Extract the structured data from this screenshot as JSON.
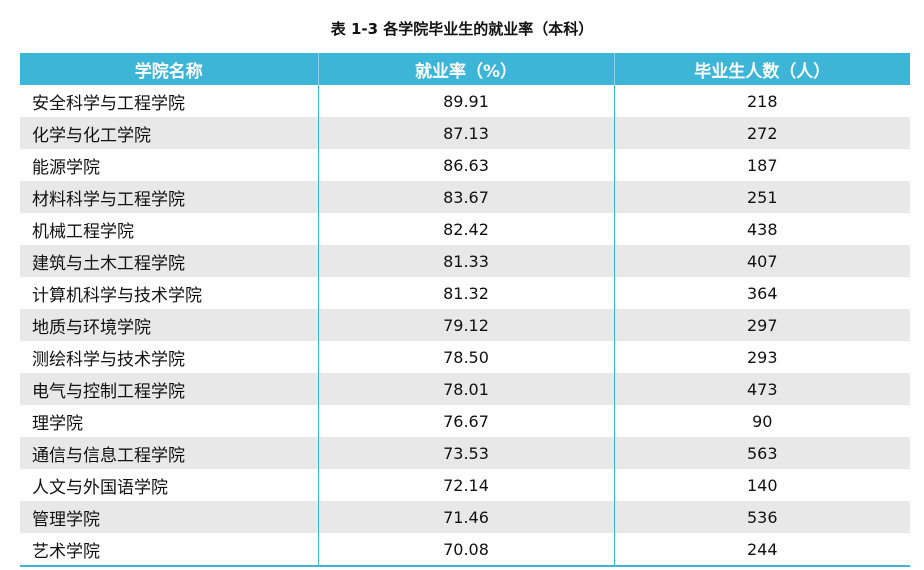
{
  "header": {
    "title": "表 1-3  各学院毕业生的就业率（本科）"
  },
  "table": {
    "columns": [
      "学院名称",
      "就业率（%）",
      "毕业生人数（人）"
    ],
    "rows": [
      [
        "安全科学与工程学院",
        "89.91",
        "218"
      ],
      [
        "化学与化工学院",
        "87.13",
        "272"
      ],
      [
        "能源学院",
        "86.63",
        "187"
      ],
      [
        "材料科学与工程学院",
        "83.67",
        "251"
      ],
      [
        "机械工程学院",
        "82.42",
        "438"
      ],
      [
        "建筑与土木工程学院",
        "81.33",
        "407"
      ],
      [
        "计算机科学与技术学院",
        "81.32",
        "364"
      ],
      [
        "地质与环境学院",
        "79.12",
        "297"
      ],
      [
        "测绘科学与技术学院",
        "78.50",
        "293"
      ],
      [
        "电气与控制工程学院",
        "78.01",
        "473"
      ],
      [
        "理学院",
        "76.67",
        "90"
      ],
      [
        "通信与信息工程学院",
        "73.53",
        "563"
      ],
      [
        "人文与外国语学院",
        "72.14",
        "140"
      ],
      [
        "管理学院",
        "71.46",
        "536"
      ],
      [
        "艺术学院",
        "70.08",
        "244"
      ]
    ]
  }
}
